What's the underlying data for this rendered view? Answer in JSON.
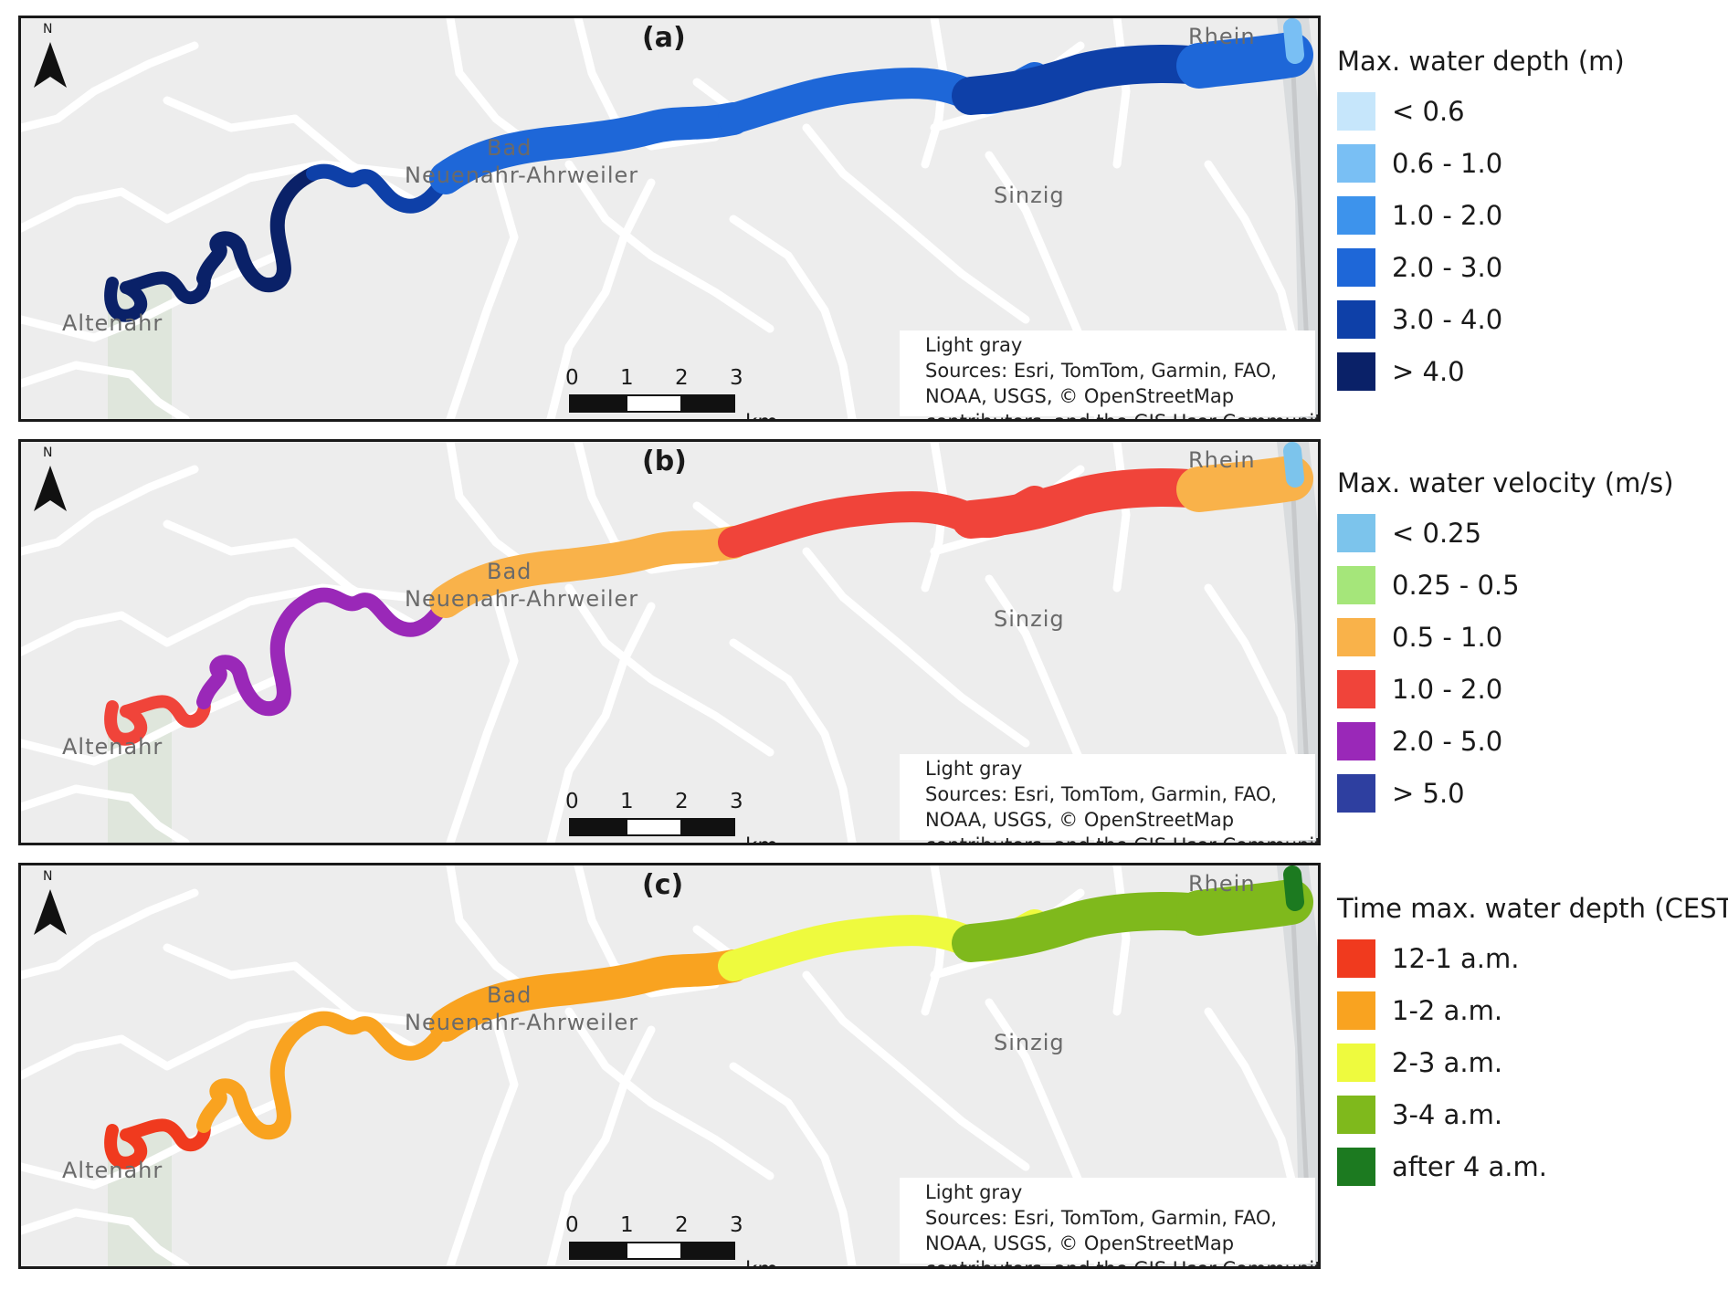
{
  "panels": [
    {
      "label": "(a)",
      "legend": {
        "title": "Max. water depth (m)",
        "classes": [
          {
            "label": "< 0.6",
            "color": "#c6e6fb"
          },
          {
            "label": "0.6 - 1.0",
            "color": "#79bff4"
          },
          {
            "label": "1.0 - 2.0",
            "color": "#3d93ec"
          },
          {
            "label": "2.0 - 3.0",
            "color": "#1e67d8"
          },
          {
            "label": "3.0 - 4.0",
            "color": "#0e40a8"
          },
          {
            "label": "> 4.0",
            "color": "#0a2168"
          }
        ]
      }
    },
    {
      "label": "(b)",
      "legend": {
        "title": "Max. water velocity (m/s)",
        "classes": [
          {
            "label": "< 0.25",
            "color": "#7cc4ec"
          },
          {
            "label": "0.25 - 0.5",
            "color": "#a5e67a"
          },
          {
            "label": "0.5 - 1.0",
            "color": "#f9b24a"
          },
          {
            "label": "1.0 - 2.0",
            "color": "#f0443a"
          },
          {
            "label": "2.0 - 5.0",
            "color": "#9a28b8"
          },
          {
            "label": "> 5.0",
            "color": "#2e3fa0"
          }
        ]
      }
    },
    {
      "label": "(c)",
      "legend": {
        "title": "Time max. water depth (CEST)",
        "classes": [
          {
            "label": "12-1 a.m.",
            "color": "#f03a1e"
          },
          {
            "label": "1-2 a.m.",
            "color": "#f9a320"
          },
          {
            "label": "2-3 a.m.",
            "color": "#eefa3e"
          },
          {
            "label": "3-4 a.m.",
            "color": "#7fb91c"
          },
          {
            "label": "after 4 a.m.",
            "color": "#1c7a20"
          }
        ]
      }
    }
  ],
  "places": {
    "altenahr": "Altenahr",
    "bad": "Bad",
    "neuenahr": "Neuenahr-Ahrweiler",
    "sinzig": "Sinzig",
    "rhein": "Rhein"
  },
  "north_arrow_label": "N",
  "scale_bar": {
    "ticks": [
      "0",
      "1",
      "2",
      "3"
    ],
    "unit": "km"
  },
  "attribution": {
    "basemap": "Light gray",
    "line1": "Sources: Esri, TomTom, Garmin, FAO,",
    "line2": "NOAA, USGS, © OpenStreetMap",
    "line3": "contributors, and the GIS User Community"
  }
}
